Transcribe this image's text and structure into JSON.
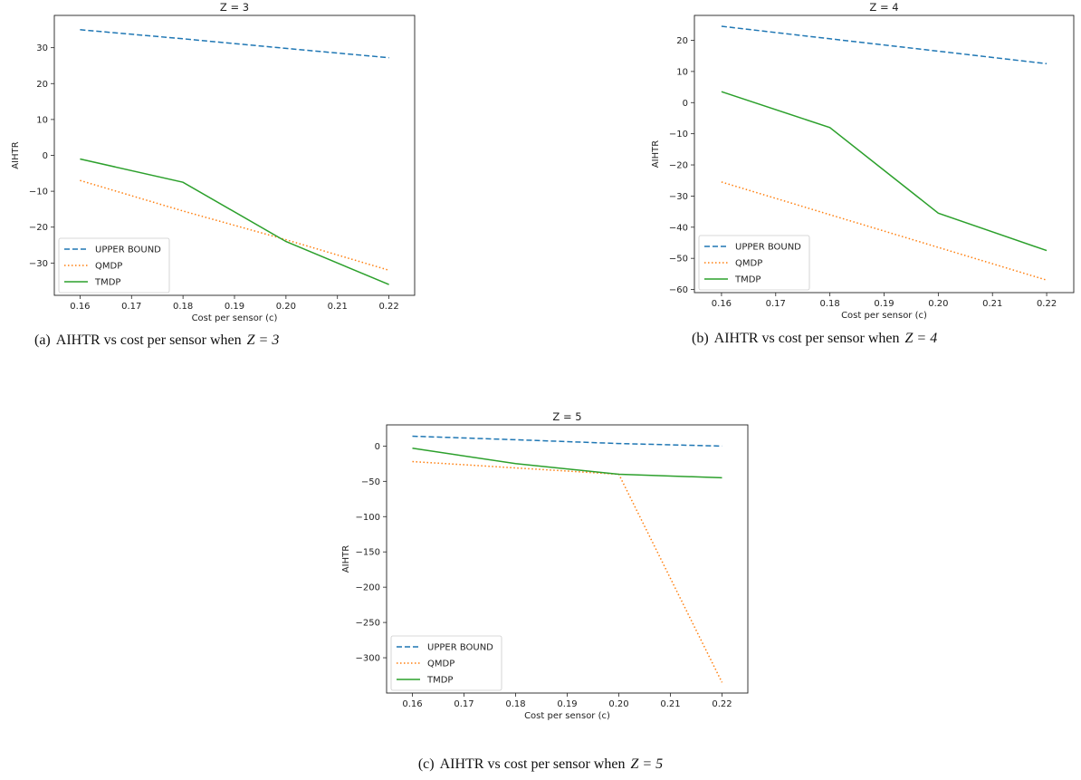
{
  "chart_data": [
    {
      "type": "line",
      "title": "Z = 3",
      "xlabel": "Cost per sensor (c)",
      "ylabel": "AIHTR",
      "x": [
        0.16,
        0.18,
        0.2,
        0.22
      ],
      "xticks": [
        "0.16",
        "0.17",
        "0.18",
        "0.19",
        "0.20",
        "0.21",
        "0.22"
      ],
      "yticks": [
        "−30",
        "−20",
        "−10",
        "0",
        "10",
        "20",
        "30"
      ],
      "xlim": [
        0.155,
        0.225
      ],
      "ylim": [
        -39,
        39
      ],
      "legend_position": "lower-left",
      "series": [
        {
          "name": "UPPER BOUND",
          "color": "#1f77b4",
          "style": "dashed",
          "values": [
            35,
            32.5,
            29.8,
            27.2
          ]
        },
        {
          "name": "QMDP",
          "color": "#ff7f0e",
          "style": "dotted",
          "values": [
            -7,
            -15.5,
            -23.5,
            -32
          ]
        },
        {
          "name": "TMDP",
          "color": "#2ca02c",
          "style": "solid",
          "values": [
            -1,
            -7.5,
            -24,
            -36
          ]
        }
      ],
      "caption_label": "(a)",
      "caption_text": "AIHTR vs cost per sensor when",
      "caption_math": "Z = 3"
    },
    {
      "type": "line",
      "title": "Z = 4",
      "xlabel": "Cost per sensor (c)",
      "ylabel": "AIHTR",
      "x": [
        0.16,
        0.18,
        0.2,
        0.22
      ],
      "xticks": [
        "0.16",
        "0.17",
        "0.18",
        "0.19",
        "0.20",
        "0.21",
        "0.22"
      ],
      "yticks": [
        "−60",
        "−50",
        "−40",
        "−30",
        "−20",
        "−10",
        "0",
        "10",
        "20"
      ],
      "xlim": [
        0.155,
        0.225
      ],
      "ylim": [
        -61,
        28
      ],
      "legend_position": "lower-left",
      "series": [
        {
          "name": "UPPER BOUND",
          "color": "#1f77b4",
          "style": "dashed",
          "values": [
            24.5,
            20.5,
            16.5,
            12.5
          ]
        },
        {
          "name": "QMDP",
          "color": "#ff7f0e",
          "style": "dotted",
          "values": [
            -25.5,
            -36,
            -46.5,
            -57
          ]
        },
        {
          "name": "TMDP",
          "color": "#2ca02c",
          "style": "solid",
          "values": [
            3.5,
            -8,
            -35.5,
            -47.5
          ]
        }
      ],
      "caption_label": "(b)",
      "caption_text": "AIHTR vs cost per sensor when",
      "caption_math": "Z = 4"
    },
    {
      "type": "line",
      "title": "Z = 5",
      "xlabel": "Cost per sensor (c)",
      "ylabel": "AIHTR",
      "x": [
        0.16,
        0.18,
        0.2,
        0.22
      ],
      "xticks": [
        "0.16",
        "0.17",
        "0.18",
        "0.19",
        "0.20",
        "0.21",
        "0.22"
      ],
      "yticks": [
        "−300",
        "−250",
        "−200",
        "−150",
        "−100",
        "−50",
        "0"
      ],
      "xlim": [
        0.155,
        0.225
      ],
      "ylim": [
        -350,
        30
      ],
      "legend_position": "lower-left",
      "series": [
        {
          "name": "UPPER BOUND",
          "color": "#1f77b4",
          "style": "dashed",
          "values": [
            14,
            9,
            3.5,
            0
          ]
        },
        {
          "name": "QMDP",
          "color": "#ff7f0e",
          "style": "dotted",
          "values": [
            -22,
            -31,
            -40,
            -335
          ]
        },
        {
          "name": "TMDP",
          "color": "#2ca02c",
          "style": "solid",
          "values": [
            -3,
            -25,
            -40,
            -45
          ]
        }
      ],
      "caption_label": "(c)",
      "caption_text": "AIHTR vs cost per sensor when",
      "caption_math": "Z = 5"
    }
  ]
}
